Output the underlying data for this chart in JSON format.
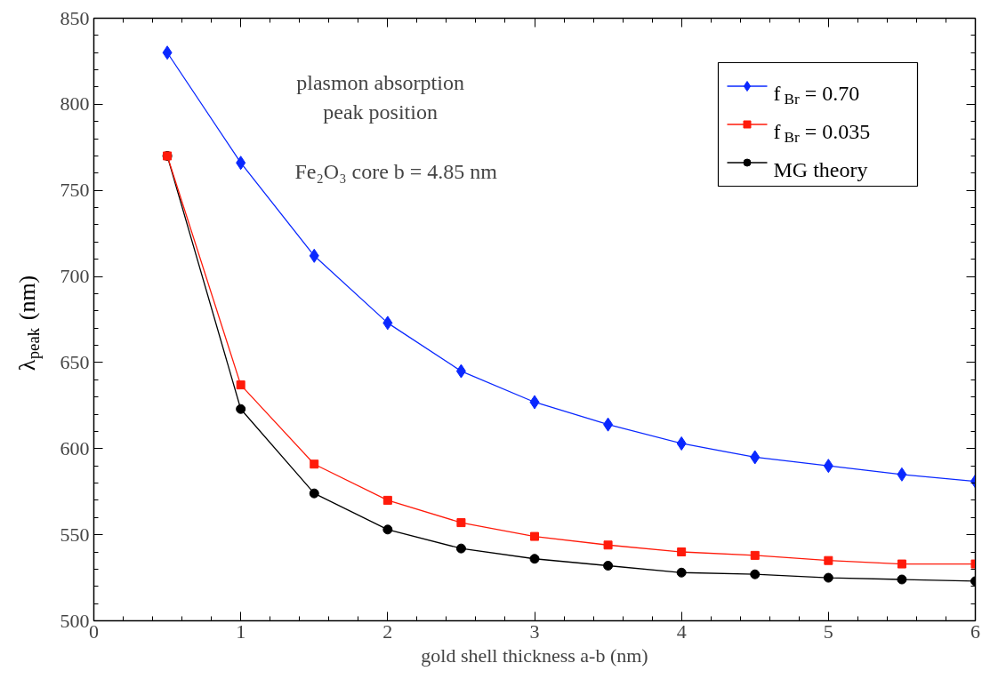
{
  "chart_data": {
    "type": "line",
    "xlabel": "gold shell thickness a-b (nm)",
    "ylabel": "λ$_{peak}$ (nm)",
    "annotations": [
      "plasmon absorption",
      "peak position",
      "Fe₂O₃ core b = 4.85 nm"
    ],
    "x": [
      0.5,
      1,
      1.5,
      2,
      2.5,
      3,
      3.5,
      4,
      4.5,
      5,
      5.5,
      6
    ],
    "series": [
      {
        "name": "f$_{Br}$ = 0.70",
        "color": "#0a28ff",
        "marker": "diamond",
        "values": [
          830,
          766,
          712,
          673,
          645,
          627,
          614,
          603,
          595,
          590,
          585,
          581
        ]
      },
      {
        "name": "f$_{Br}$ = 0.035",
        "color": "#ff1a0a",
        "marker": "square",
        "values": [
          770,
          637,
          591,
          570,
          557,
          549,
          544,
          540,
          538,
          535,
          533,
          533
        ]
      },
      {
        "name": "MG theory",
        "color": "#000000",
        "marker": "circle",
        "values": [
          770,
          623,
          574,
          553,
          542,
          536,
          532,
          528,
          527,
          525,
          524,
          523
        ]
      }
    ],
    "xlim": [
      0,
      6
    ],
    "ylim": [
      500,
      850
    ],
    "xticks": [
      0,
      1,
      2,
      3,
      4,
      5,
      6
    ],
    "yticks": [
      500,
      550,
      600,
      650,
      700,
      750,
      800,
      850
    ],
    "legend": "top right",
    "grid": false,
    "line_style": "solid"
  }
}
